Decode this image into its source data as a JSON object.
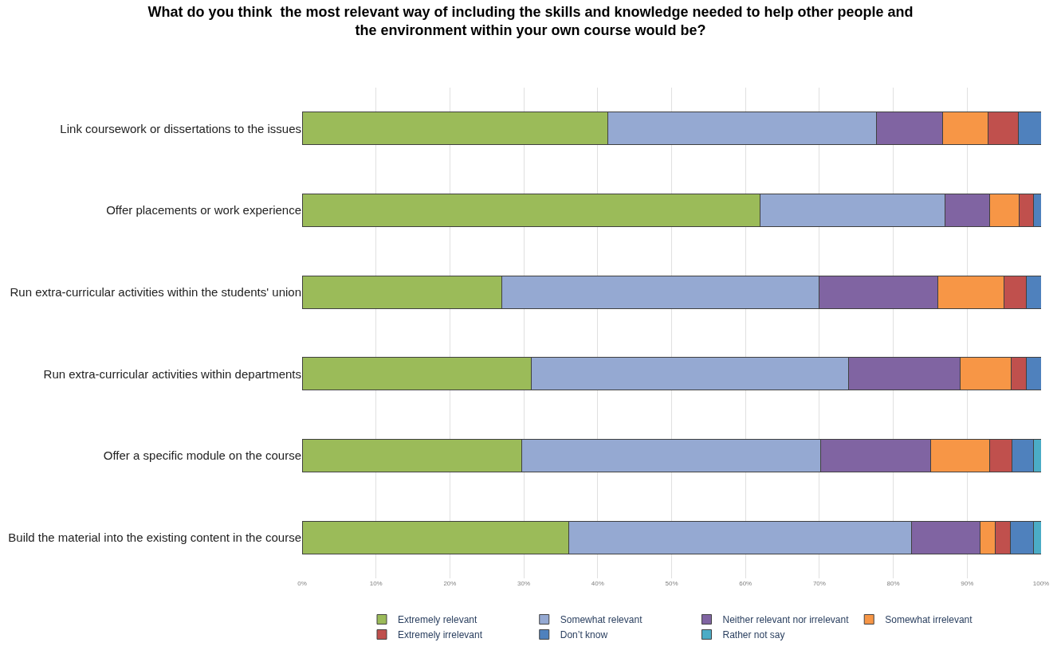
{
  "chart_data": {
    "type": "bar",
    "orientation": "horizontal",
    "stacked": true,
    "title": "What do you think  the most relevant way of including the skills and knowledge needed to help other people and the environment within your own course would be?",
    "categories": [
      "Link coursework or dissertations to the issues",
      "Offer placements or work experience",
      "Run extra-curricular activities within the students' union",
      "Run extra-curricular activities within departments",
      "Offer a specific module on the course",
      "Build the material into the existing content in the course"
    ],
    "series": [
      {
        "name": "Extremely relevant",
        "color": "#9bbb59",
        "values": [
          41.4,
          62,
          27,
          31,
          29.7,
          36.1
        ]
      },
      {
        "name": "Somewhat relevant",
        "color": "#95a9d2",
        "values": [
          36.3,
          25,
          43,
          43,
          40.5,
          46.4
        ]
      },
      {
        "name": "Neither relevant nor irrelevant",
        "color": "#8064a2",
        "values": [
          9,
          6,
          16,
          15,
          14.9,
          9.3
        ]
      },
      {
        "name": "Somewhat irrelevant",
        "color": "#f79646",
        "values": [
          6.1,
          4,
          9,
          7,
          7.9,
          2
        ]
      },
      {
        "name": "Extremely irrelevant",
        "color": "#c0504d",
        "values": [
          4.1,
          2,
          3,
          2,
          3.1,
          2.1
        ]
      },
      {
        "name": "Don’t know",
        "color": "#4f81bd",
        "values": [
          3.1,
          1,
          2,
          2,
          2.9,
          3.1
        ]
      },
      {
        "name": "Rather not say",
        "color": "#4bacc6",
        "values": [
          null,
          null,
          null,
          null,
          1,
          1
        ]
      }
    ],
    "xlim": [
      0,
      100
    ],
    "xticks": [
      {
        "value": 0,
        "label": "0%"
      },
      {
        "value": 10,
        "label": "10%"
      },
      {
        "value": 20,
        "label": "20%"
      },
      {
        "value": 30,
        "label": "30%"
      },
      {
        "value": 40,
        "label": "40%"
      },
      {
        "value": 50,
        "label": "50%"
      },
      {
        "value": 60,
        "label": "60%"
      },
      {
        "value": 70,
        "label": "70%"
      },
      {
        "value": 80,
        "label": "80%"
      },
      {
        "value": 90,
        "label": "90%"
      },
      {
        "value": 100,
        "label": "100%"
      }
    ],
    "grid": "x",
    "legend": "bottom"
  }
}
